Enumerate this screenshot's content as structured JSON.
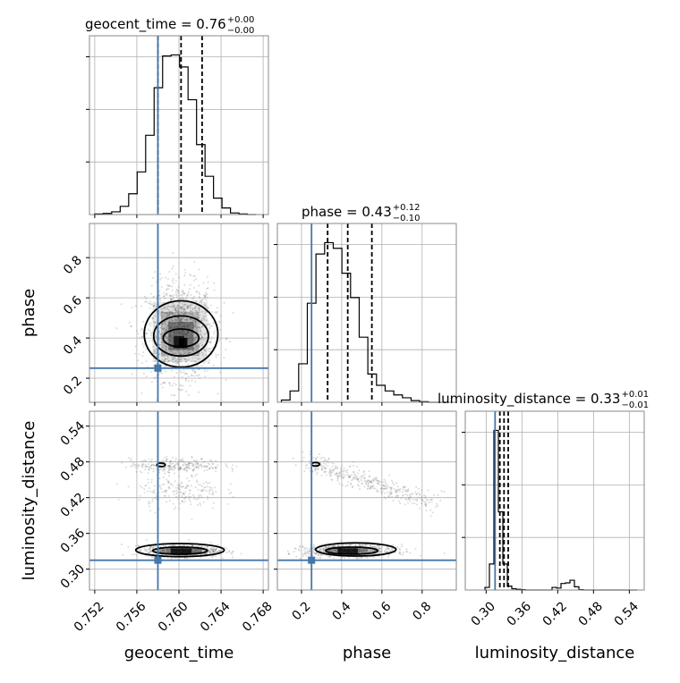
{
  "colors": {
    "truth": "#4477aa",
    "hist": "#000000",
    "grid": "#b0b0b0",
    "scatter": "#7f7f7f",
    "frame": "#888888"
  },
  "chart_data": {
    "type": "corner",
    "parameters": [
      "geocent_time",
      "phase",
      "luminosity_distance"
    ],
    "truths": {
      "geocent_time": 0.758,
      "phase": 0.25,
      "luminosity_distance": 0.315
    },
    "titles": [
      {
        "param": "geocent_time",
        "text": "geocent_time = 0.76",
        "sup": "+0.00",
        "sub": "−0.00"
      },
      {
        "param": "phase",
        "text": "phase = 0.43",
        "sup": "+0.12",
        "sub": "−0.10"
      },
      {
        "param": "luminosity_distance",
        "text": "luminosity_distance = 0.33",
        "sup": "+0.01",
        "sub": "−0.01"
      }
    ],
    "axes": {
      "geocent_time": {
        "label": "geocent_time",
        "range": [
          0.7515,
          0.7685
        ],
        "ticks": [
          "0.752",
          "0.756",
          "0.760",
          "0.764",
          "0.768"
        ],
        "tick_values": [
          0.752,
          0.756,
          0.76,
          0.764,
          0.768
        ]
      },
      "phase": {
        "label": "phase",
        "range": [
          0.08,
          0.97
        ],
        "ticks": [
          "0.2",
          "0.4",
          "0.6",
          "0.8"
        ],
        "tick_values": [
          0.2,
          0.4,
          0.6,
          0.8
        ]
      },
      "luminosity_distance": {
        "label": "luminosity_distance",
        "range": [
          0.265,
          0.565
        ],
        "ticks": [
          "0.30",
          "0.36",
          "0.42",
          "0.48",
          "0.54"
        ],
        "tick_values": [
          0.3,
          0.36,
          0.42,
          0.48,
          0.54
        ]
      }
    },
    "histograms": {
      "geocent_time": {
        "bin_start": 0.752,
        "bin_width": 0.000806,
        "counts": [
          1,
          2,
          5,
          15,
          38,
          78,
          145,
          232,
          290,
          292,
          270,
          210,
          128,
          70,
          30,
          12,
          3,
          1,
          0
        ],
        "quantiles": [
          0.758,
          0.7602,
          0.7622
        ]
      },
      "phase": {
        "bin_start": 0.1,
        "bin_width": 0.043,
        "counts": [
          4,
          20,
          68,
          175,
          262,
          282,
          272,
          228,
          185,
          115,
          50,
          30,
          20,
          13,
          8,
          3,
          1,
          0,
          0
        ],
        "quantiles": [
          0.33,
          0.43,
          0.55
        ]
      },
      "luminosity_distance": {
        "bin_start": 0.298,
        "bin_width": 0.0075,
        "counts": [
          8,
          80,
          490,
          240,
          80,
          12,
          4,
          2,
          1,
          0,
          0,
          0,
          0,
          0,
          0,
          8,
          6,
          20,
          22,
          30,
          10,
          1,
          0,
          0,
          0,
          0,
          0,
          0,
          0,
          0,
          0,
          0,
          0,
          0
        ],
        "quantiles": [
          0.323,
          0.33,
          0.337
        ]
      }
    }
  }
}
